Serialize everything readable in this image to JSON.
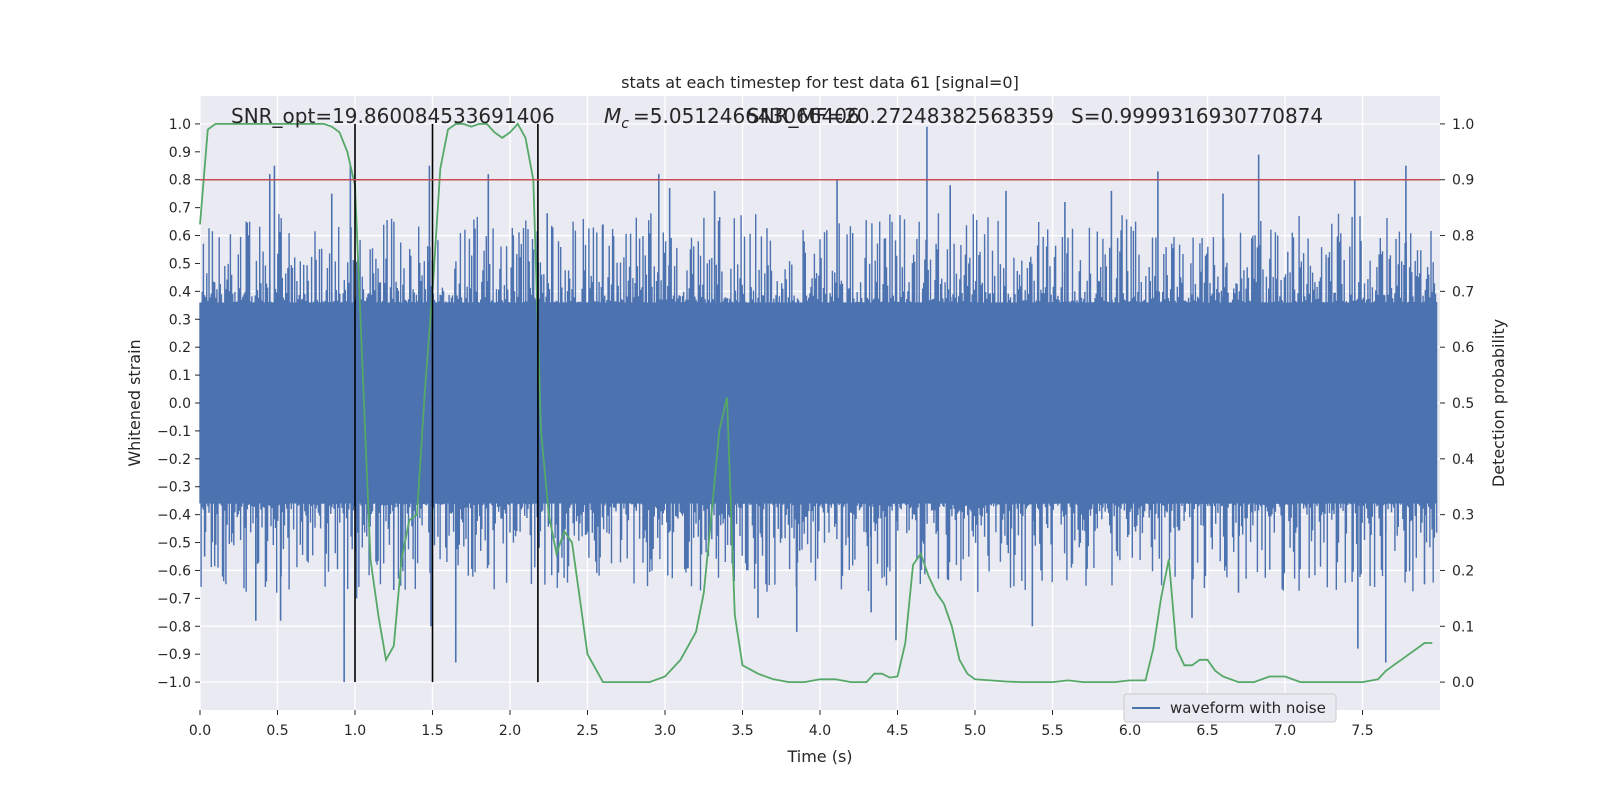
{
  "chart_data": {
    "type": "line",
    "title": "stats at each timestep for test data 61 [signal=0]",
    "xlabel": "Time (s)",
    "ylabel_left": "Whitened strain",
    "ylabel_right": "Detection probability",
    "xlim": [
      0.0,
      8.0
    ],
    "ylim_left": [
      -1.1,
      1.1
    ],
    "ylim_right": [
      -0.05,
      1.05
    ],
    "x_ticks": [
      "0.0",
      "0.5",
      "1.0",
      "1.5",
      "2.0",
      "2.5",
      "3.0",
      "3.5",
      "4.0",
      "4.5",
      "5.0",
      "5.5",
      "6.0",
      "6.5",
      "7.0",
      "7.5"
    ],
    "y_ticks_left": [
      "−1.0",
      "−0.9",
      "−0.8",
      "−0.7",
      "−0.6",
      "−0.5",
      "−0.4",
      "−0.3",
      "−0.2",
      "−0.1",
      "0.0",
      "0.1",
      "0.2",
      "0.3",
      "0.4",
      "0.5",
      "0.6",
      "0.7",
      "0.8",
      "0.9",
      "1.0"
    ],
    "y_ticks_right": [
      "0.0",
      "0.1",
      "0.2",
      "0.3",
      "0.4",
      "0.5",
      "0.6",
      "0.7",
      "0.8",
      "0.9",
      "1.0"
    ],
    "grid": true,
    "annotations": {
      "snr_opt": "SNR_opt=19.860084533691406",
      "chirp_mass": "=5.051246643066406",
      "snr_mf": "SNR_MF=20.27248382568359",
      "s_value": "S=0.9999316930770874"
    },
    "legend": {
      "placement": "lower-right",
      "entries": [
        "waveform with noise"
      ]
    },
    "threshold": {
      "value": 0.9,
      "axis": "right",
      "color": "#c44e52"
    },
    "vertical_lines": [
      1.0,
      1.5,
      2.18
    ],
    "series": [
      {
        "name": "waveform with noise",
        "axis": "left",
        "color": "#4c72b0",
        "style": "noisy whitened strain, dense fill approx. between -0.4 and 0.4 with spikes up to 1.0 and down to -1.0",
        "spikes": [
          [
            0.03,
            -0.55
          ],
          [
            0.36,
            -0.78
          ],
          [
            0.45,
            0.82
          ],
          [
            0.48,
            0.85
          ],
          [
            0.52,
            -0.78
          ],
          [
            0.85,
            0.75
          ],
          [
            0.93,
            -1.0
          ],
          [
            0.97,
            0.85
          ],
          [
            1.01,
            -0.7
          ],
          [
            1.25,
            -0.67
          ],
          [
            1.48,
            0.85
          ],
          [
            1.49,
            -0.8
          ],
          [
            1.65,
            -0.93
          ],
          [
            1.86,
            0.82
          ],
          [
            2.24,
            0.68
          ],
          [
            2.6,
            0.64
          ],
          [
            2.96,
            0.82
          ],
          [
            3.03,
            0.77
          ],
          [
            3.32,
            0.76
          ],
          [
            3.6,
            -0.77
          ],
          [
            3.85,
            -0.82
          ],
          [
            4.11,
            0.8
          ],
          [
            4.33,
            -0.75
          ],
          [
            4.49,
            -0.85
          ],
          [
            4.69,
            0.99
          ],
          [
            4.84,
            0.78
          ],
          [
            5.2,
            0.76
          ],
          [
            5.37,
            -0.8
          ],
          [
            5.58,
            0.72
          ],
          [
            5.88,
            0.76
          ],
          [
            6.18,
            0.83
          ],
          [
            6.4,
            -0.77
          ],
          [
            6.6,
            0.75
          ],
          [
            6.7,
            -0.68
          ],
          [
            6.83,
            0.89
          ],
          [
            7.45,
            0.8
          ],
          [
            7.47,
            -0.88
          ],
          [
            7.65,
            -0.93
          ],
          [
            7.78,
            0.85
          ],
          [
            7.9,
            -0.65
          ]
        ]
      },
      {
        "name": "",
        "axis": "right",
        "color": "#55a868",
        "x": [
          0.0,
          0.05,
          0.1,
          0.2,
          0.3,
          0.4,
          0.5,
          0.6,
          0.7,
          0.8,
          0.85,
          0.9,
          0.95,
          1.0,
          1.05,
          1.1,
          1.15,
          1.2,
          1.25,
          1.3,
          1.35,
          1.4,
          1.45,
          1.5,
          1.55,
          1.6,
          1.65,
          1.7,
          1.75,
          1.8,
          1.85,
          1.9,
          1.95,
          2.0,
          2.05,
          2.1,
          2.15,
          2.2,
          2.25,
          2.3,
          2.35,
          2.4,
          2.45,
          2.5,
          2.6,
          2.7,
          2.8,
          2.9,
          3.0,
          3.1,
          3.2,
          3.25,
          3.3,
          3.35,
          3.4,
          3.45,
          3.5,
          3.6,
          3.7,
          3.8,
          3.9,
          4.0,
          4.1,
          4.2,
          4.3,
          4.35,
          4.4,
          4.45,
          4.5,
          4.55,
          4.6,
          4.65,
          4.7,
          4.75,
          4.8,
          4.85,
          4.9,
          4.95,
          5.0,
          5.1,
          5.2,
          5.3,
          5.4,
          5.5,
          5.6,
          5.7,
          5.8,
          5.9,
          6.0,
          6.1,
          6.15,
          6.2,
          6.25,
          6.3,
          6.35,
          6.4,
          6.45,
          6.5,
          6.55,
          6.6,
          6.7,
          6.8,
          6.9,
          7.0,
          7.1,
          7.2,
          7.3,
          7.4,
          7.5,
          7.6,
          7.65,
          7.7,
          7.75,
          7.8,
          7.85,
          7.9,
          7.95
        ],
        "y": [
          0.82,
          0.99,
          1.0,
          1.0,
          1.0,
          1.0,
          1.0,
          1.0,
          1.0,
          1.0,
          0.995,
          0.985,
          0.95,
          0.89,
          0.55,
          0.22,
          0.12,
          0.04,
          0.065,
          0.22,
          0.29,
          0.3,
          0.52,
          0.7,
          0.92,
          0.99,
          1.0,
          1.0,
          0.995,
          1.0,
          1.0,
          0.985,
          0.975,
          0.985,
          1.0,
          0.975,
          0.9,
          0.45,
          0.3,
          0.23,
          0.27,
          0.25,
          0.15,
          0.05,
          0.0,
          0.0,
          0.0,
          0.0,
          0.01,
          0.04,
          0.09,
          0.16,
          0.3,
          0.45,
          0.51,
          0.12,
          0.03,
          0.015,
          0.005,
          0.0,
          0.0,
          0.005,
          0.005,
          0.0,
          0.0,
          0.015,
          0.015,
          0.008,
          0.01,
          0.07,
          0.21,
          0.23,
          0.19,
          0.16,
          0.14,
          0.1,
          0.04,
          0.015,
          0.005,
          0.003,
          0.001,
          0.0,
          0.0,
          0.0,
          0.003,
          0.0,
          0.0,
          0.0,
          0.003,
          0.003,
          0.06,
          0.15,
          0.22,
          0.06,
          0.03,
          0.03,
          0.04,
          0.04,
          0.02,
          0.01,
          0.0,
          0.0,
          0.01,
          0.01,
          0.0,
          0.0,
          0.0,
          0.0,
          0.0,
          0.005,
          0.02,
          0.03,
          0.04,
          0.05,
          0.06,
          0.07,
          0.07
        ]
      }
    ]
  }
}
